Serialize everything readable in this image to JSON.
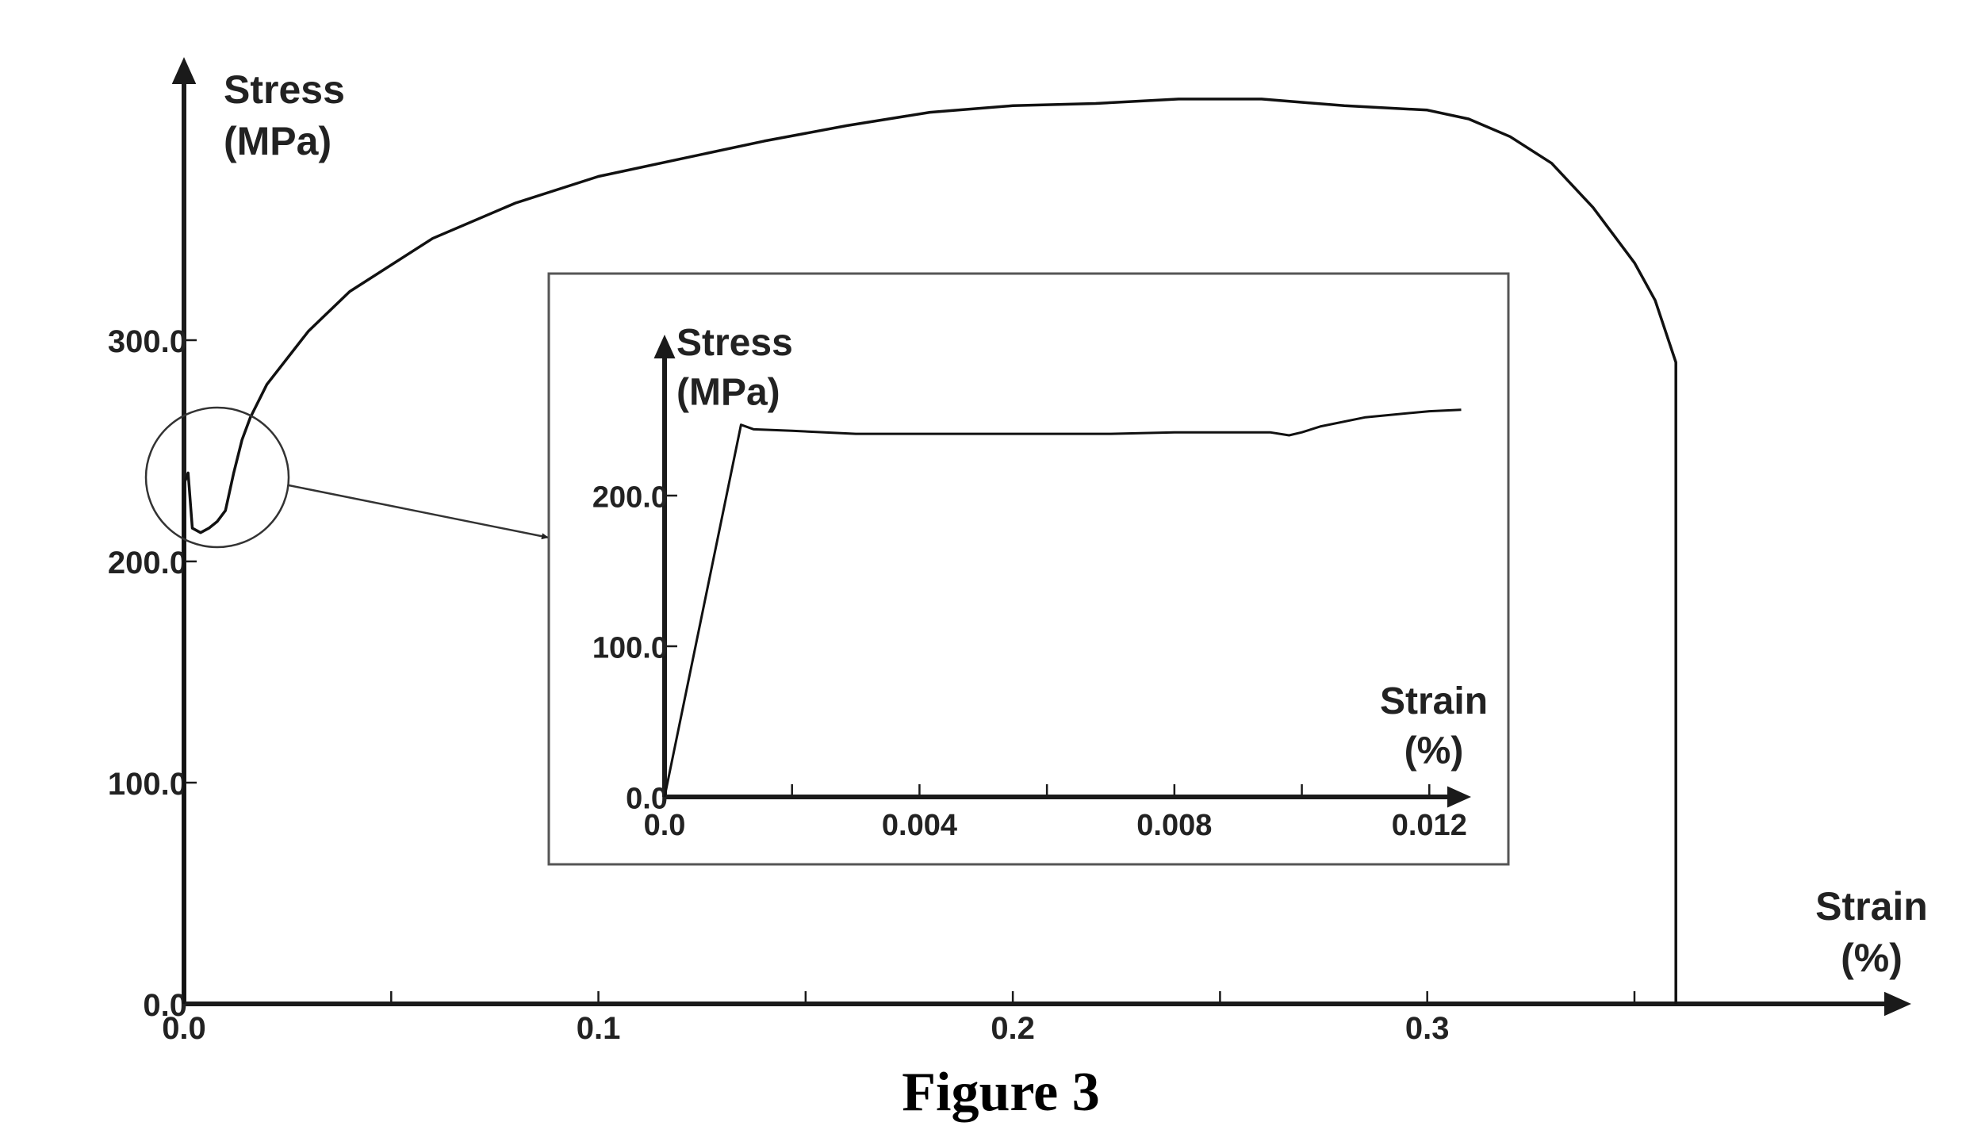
{
  "figure_caption": "Figure 3",
  "chart_data": [
    {
      "id": "main",
      "type": "line",
      "title": "",
      "ylabel_line1": "Stress",
      "ylabel_line2": "(MPa)",
      "xlabel_line1": "Strain",
      "xlabel_line2": "(%)",
      "xlim": [
        0,
        0.39
      ],
      "ylim": [
        0,
        400
      ],
      "xticks": [
        0.0,
        0.05,
        0.1,
        0.15,
        0.2,
        0.25,
        0.3,
        0.35
      ],
      "xtick_labels": [
        "0.0",
        "",
        "0.1",
        "",
        "0.2",
        "",
        "0.3",
        ""
      ],
      "yticks": [
        0,
        100,
        200,
        300
      ],
      "ytick_labels": [
        "0.0",
        "100.0",
        "200.0",
        "300.0"
      ],
      "grid": false,
      "series": [
        {
          "x": [
            0.0,
            0.0,
            0.001,
            0.002,
            0.004,
            0.006,
            0.008,
            0.01,
            0.012,
            0.014,
            0.016,
            0.02,
            0.03,
            0.04,
            0.06,
            0.08,
            0.1,
            0.12,
            0.14,
            0.16,
            0.18,
            0.2,
            0.22,
            0.24,
            0.26,
            0.28,
            0.3,
            0.31,
            0.32,
            0.33,
            0.34,
            0.35,
            0.355,
            0.36,
            0.36
          ],
          "y": [
            0,
            235,
            240,
            215,
            213,
            215,
            218,
            223,
            240,
            255,
            265,
            280,
            304,
            322,
            346,
            362,
            374,
            382,
            390,
            397,
            403,
            406,
            407,
            409,
            409,
            406,
            404,
            400,
            392,
            380,
            360,
            335,
            318,
            290,
            0
          ]
        }
      ]
    },
    {
      "id": "inset",
      "type": "line",
      "title": "",
      "ylabel_line1": "Stress",
      "ylabel_line2": "(MPa)",
      "xlabel_line1": "Strain",
      "xlabel_line2": "(%)",
      "xlim": [
        0,
        0.014
      ],
      "ylim": [
        0,
        250
      ],
      "xticks": [
        0.0,
        0.002,
        0.004,
        0.006,
        0.008,
        0.01,
        0.012
      ],
      "xtick_labels": [
        "0.0",
        "",
        "0.004",
        "",
        "0.008",
        "",
        "0.012"
      ],
      "yticks": [
        0,
        100,
        200
      ],
      "ytick_labels": [
        "0.0",
        "100.0",
        "200.0"
      ],
      "grid": false,
      "series": [
        {
          "x": [
            0.0,
            0.0012,
            0.0014,
            0.002,
            0.003,
            0.005,
            0.007,
            0.008,
            0.0095,
            0.0098,
            0.01,
            0.0103,
            0.011,
            0.012,
            0.0125
          ],
          "y": [
            0,
            247,
            244,
            243,
            241,
            241,
            241,
            242,
            242,
            240,
            242,
            246,
            252,
            256,
            257
          ]
        }
      ]
    }
  ]
}
